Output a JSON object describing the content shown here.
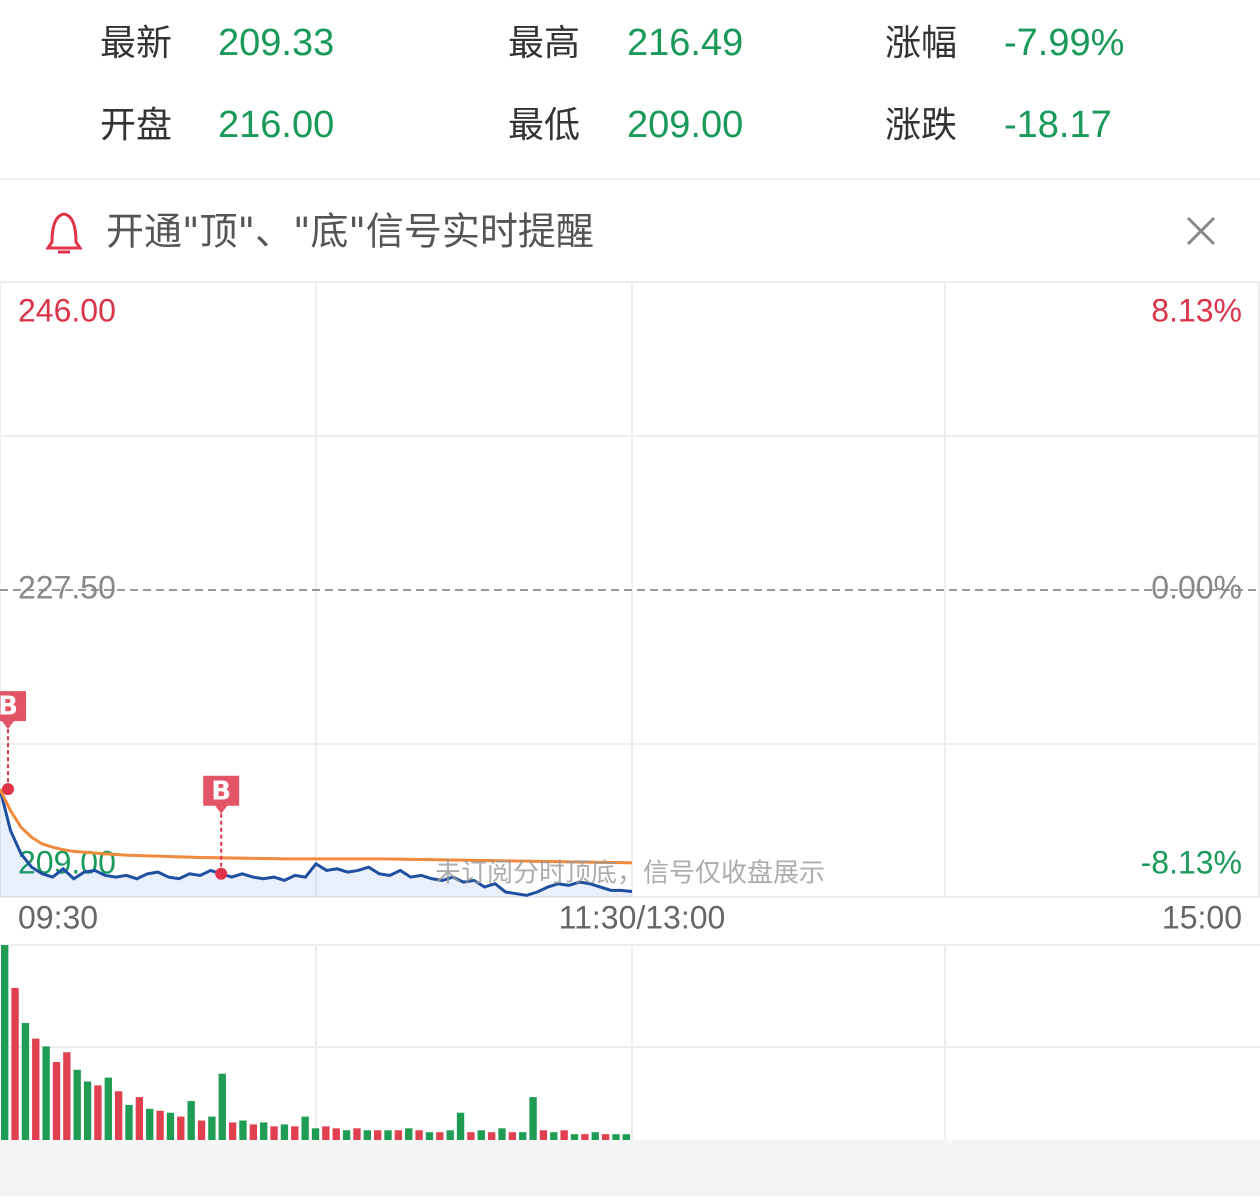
{
  "header": {
    "stats": [
      {
        "label": "最新",
        "value": "209.33"
      },
      {
        "label": "最高",
        "value": "216.49"
      },
      {
        "label": "涨幅",
        "value": "-7.99%"
      },
      {
        "label": "开盘",
        "value": "216.00"
      },
      {
        "label": "最低",
        "value": "209.00"
      },
      {
        "label": "涨跌",
        "value": "-18.17"
      }
    ]
  },
  "banner": {
    "text": "开通\"顶\"、\"底\"信号实时提醒"
  },
  "chart_data": {
    "type": "line",
    "x_labels": [
      "09:30",
      "11:30/13:00",
      "15:00"
    ],
    "watermark": "未订阅分时顶底，信号仅收盘展示",
    "ylim": [
      209,
      246
    ],
    "yticks": [
      {
        "value": 246,
        "label": "246.00"
      },
      {
        "value": 227.5,
        "label": "227.50"
      },
      {
        "value": 209,
        "label": "209.00"
      }
    ],
    "y2lim": [
      -8.13,
      8.13
    ],
    "y2ticks": [
      {
        "value": 8.13,
        "label": "8.13%"
      },
      {
        "value": 0,
        "label": "0.00%"
      },
      {
        "value": -8.13,
        "label": "-8.13%"
      }
    ],
    "xlim": [
      0,
      120
    ],
    "series": [
      {
        "color": "#1f4fa0",
        "values": [
          215.5,
          213.0,
          211.6,
          210.8,
          210.4,
          210.2,
          210.7,
          210.1,
          210.5,
          210.6,
          210.3,
          210.2,
          210.3,
          210.1,
          210.4,
          210.5,
          210.2,
          210.1,
          210.4,
          210.3,
          210.6,
          210.4,
          210.2,
          210.4,
          210.2,
          210.1,
          210.2,
          210.0,
          210.3,
          210.2,
          211.0,
          210.6,
          210.7,
          210.5,
          210.6,
          210.8,
          210.4,
          210.3,
          210.6,
          210.2,
          210.3,
          210.1,
          210.0,
          210.2,
          209.9,
          210.0,
          209.6,
          209.8,
          209.3,
          209.2,
          209.1,
          209.3,
          209.6,
          209.8,
          209.7,
          209.9,
          209.8,
          209.6,
          209.4,
          209.4,
          209.33
        ]
      },
      {
        "color": "#f08a3c",
        "values": [
          215.5,
          214.2,
          213.2,
          212.6,
          212.2,
          212.0,
          211.85,
          211.75,
          211.7,
          211.65,
          211.6,
          211.56,
          211.52,
          211.5,
          211.48,
          211.46,
          211.44,
          211.42,
          211.4,
          211.38,
          211.37,
          211.36,
          211.35,
          211.34,
          211.33,
          211.32,
          211.31,
          211.3,
          211.3,
          211.3,
          211.3,
          211.3,
          211.3,
          211.3,
          211.3,
          211.3,
          211.3,
          211.29,
          211.28,
          211.27,
          211.26,
          211.25,
          211.24,
          211.23,
          211.22,
          211.21,
          211.2,
          211.19,
          211.18,
          211.17,
          211.16,
          211.15,
          211.14,
          211.13,
          211.12,
          211.11,
          211.1,
          211.09,
          211.08,
          211.07,
          211.06
        ]
      }
    ],
    "signals": [
      {
        "label": "B",
        "index": 0
      },
      {
        "label": "B",
        "index": 21
      }
    ],
    "volume": {
      "ylim": [
        0,
        100
      ],
      "values": [
        100,
        78,
        60,
        52,
        48,
        40,
        45,
        36,
        30,
        28,
        32,
        25,
        18,
        22,
        16,
        15,
        14,
        12,
        20,
        10,
        12,
        34,
        9,
        10,
        8,
        9,
        7,
        8,
        7,
        12,
        6,
        7,
        6,
        5,
        6,
        5,
        5,
        5,
        5,
        6,
        5,
        4,
        4,
        5,
        14,
        4,
        5,
        4,
        6,
        4,
        4,
        22,
        5,
        4,
        5,
        3,
        3,
        4,
        3,
        3,
        3
      ],
      "colors": [
        "#1f9d55",
        "#e04050",
        "#1f9d55",
        "#e04050",
        "#1f9d55",
        "#e04050",
        "#e04050",
        "#1f9d55",
        "#1f9d55",
        "#e04050",
        "#1f9d55",
        "#e04050",
        "#1f9d55",
        "#e04050",
        "#1f9d55",
        "#e04050",
        "#1f9d55",
        "#e04050",
        "#1f9d55",
        "#e04050",
        "#1f9d55",
        "#1f9d55",
        "#e04050",
        "#1f9d55",
        "#e04050",
        "#1f9d55",
        "#e04050",
        "#1f9d55",
        "#e04050",
        "#1f9d55",
        "#1f9d55",
        "#e04050",
        "#e04050",
        "#1f9d55",
        "#e04050",
        "#1f9d55",
        "#e04050",
        "#1f9d55",
        "#e04050",
        "#1f9d55",
        "#e04050",
        "#1f9d55",
        "#e04050",
        "#1f9d55",
        "#1f9d55",
        "#e04050",
        "#1f9d55",
        "#e04050",
        "#1f9d55",
        "#e04050",
        "#1f9d55",
        "#1f9d55",
        "#e04050",
        "#1f9d55",
        "#e04050",
        "#1f9d55",
        "#e04050",
        "#1f9d55",
        "#e04050",
        "#1f9d55",
        "#1f9d55"
      ]
    }
  }
}
